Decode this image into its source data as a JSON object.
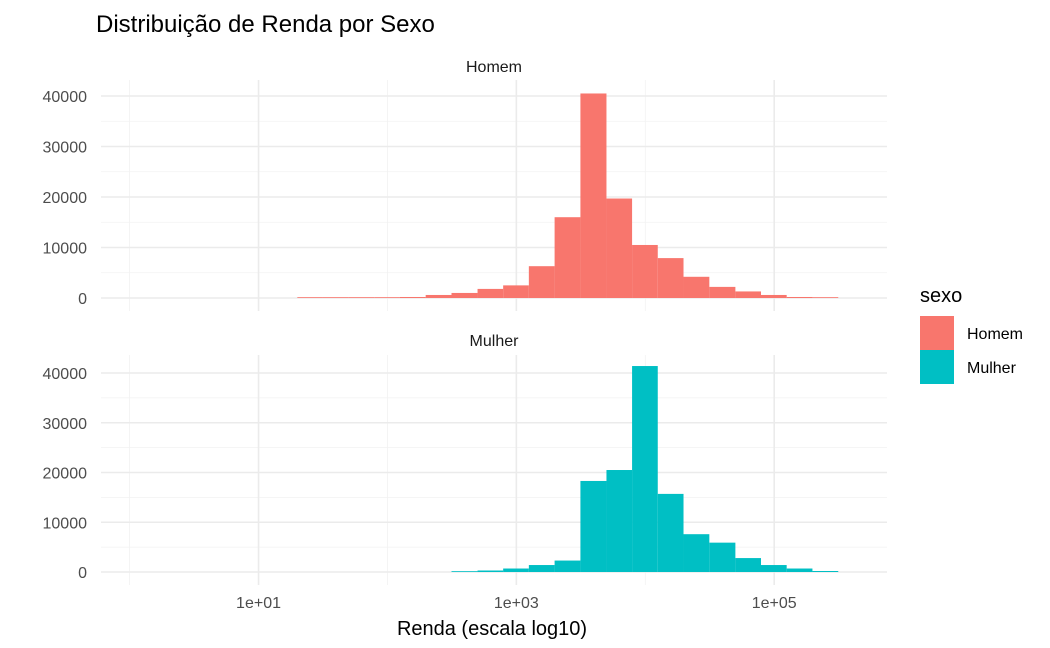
{
  "chart_data": {
    "type": "bar",
    "subtype": "faceted histogram",
    "title": "Distribuição de Renda por Sexo",
    "xlabel": "Renda (escala log10)",
    "ylabel": "",
    "x_scale": "log10",
    "xlim": [
      0.6,
      750000
    ],
    "ylim": [
      0,
      42000
    ],
    "x_ticks": [
      {
        "value": 10,
        "label": "1e+01"
      },
      {
        "value": 1000,
        "label": "1e+03"
      },
      {
        "value": 100000,
        "label": "1e+05"
      }
    ],
    "y_ticks": [
      {
        "value": 0,
        "label": "0"
      },
      {
        "value": 10000,
        "label": "10000"
      },
      {
        "value": 20000,
        "label": "20000"
      },
      {
        "value": 30000,
        "label": "30000"
      },
      {
        "value": 40000,
        "label": "40000"
      }
    ],
    "bin_edges": [
      20,
      31.6,
      50,
      79,
      125,
      198,
      314,
      500,
      790,
      1250,
      1980,
      3140,
      5000,
      7900,
      12500,
      19800,
      31400,
      50000,
      79000,
      125000,
      198000,
      314000
    ],
    "grid": true,
    "legend": {
      "title": "sexo",
      "position": "right"
    },
    "facets": [
      {
        "label": "Homem",
        "color": "#F8766D",
        "counts": [
          80,
          100,
          120,
          150,
          200,
          600,
          1000,
          1800,
          2500,
          6300,
          16000,
          40500,
          19700,
          10500,
          7900,
          4200,
          2200,
          1300,
          600,
          200,
          100
        ]
      },
      {
        "label": "Mulher",
        "color": "#00BFC4",
        "counts": [
          0,
          0,
          0,
          0,
          0,
          0,
          100,
          300,
          700,
          1400,
          2300,
          18300,
          20500,
          41400,
          15700,
          7600,
          5900,
          2800,
          1400,
          700,
          200
        ]
      }
    ]
  }
}
